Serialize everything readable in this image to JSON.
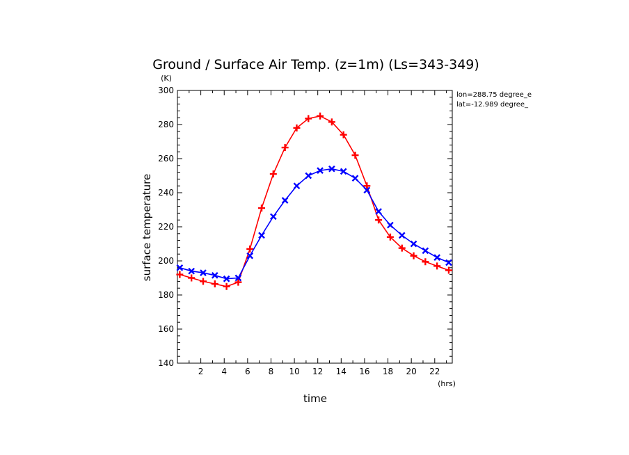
{
  "chart_data": {
    "type": "line",
    "title": "Ground / Surface Air Temp. (z=1m) (Ls=343-349)",
    "xlabel": "time",
    "ylabel": "surface temperature",
    "x_unit": "(hrs)",
    "y_unit": "(K)",
    "xlim": [
      0,
      23.5
    ],
    "ylim": [
      140,
      300
    ],
    "xticks": [
      2,
      4,
      6,
      8,
      10,
      12,
      14,
      16,
      18,
      20,
      22
    ],
    "yticks": [
      140,
      160,
      180,
      200,
      220,
      240,
      260,
      280,
      300
    ],
    "annotations": [
      "lon=288.75 degree_e",
      "lat=-12.989 degree_"
    ],
    "grid": false,
    "legend": "none",
    "series": [
      {
        "color": "#ff0000",
        "marker": "plus",
        "x": [
          0.2,
          1.2,
          2.2,
          3.2,
          4.2,
          5.2,
          6.2,
          7.2,
          8.2,
          9.2,
          10.2,
          11.2,
          12.2,
          13.2,
          14.2,
          15.2,
          16.2,
          17.2,
          18.2,
          19.2,
          20.2,
          21.2,
          22.2,
          23.2
        ],
        "y": [
          192,
          190,
          188,
          186.5,
          185,
          187.5,
          207,
          231,
          251,
          266.5,
          278,
          283.5,
          285,
          281.5,
          274,
          262,
          244,
          224,
          214,
          207.5,
          203,
          199.5,
          197,
          194.5
        ]
      },
      {
        "color": "#0000ff",
        "marker": "x",
        "x": [
          0.2,
          1.2,
          2.2,
          3.2,
          4.2,
          5.2,
          6.2,
          7.2,
          8.2,
          9.2,
          10.2,
          11.2,
          12.2,
          13.2,
          14.2,
          15.2,
          16.2,
          17.2,
          18.2,
          19.2,
          20.2,
          21.2,
          22.2,
          23.2
        ],
        "y": [
          196,
          194,
          193,
          191.5,
          189.5,
          190,
          203,
          215,
          226,
          235.5,
          244,
          250,
          253,
          254,
          252.5,
          248.5,
          241.5,
          229,
          221,
          215,
          210,
          206,
          202,
          199
        ]
      }
    ]
  }
}
